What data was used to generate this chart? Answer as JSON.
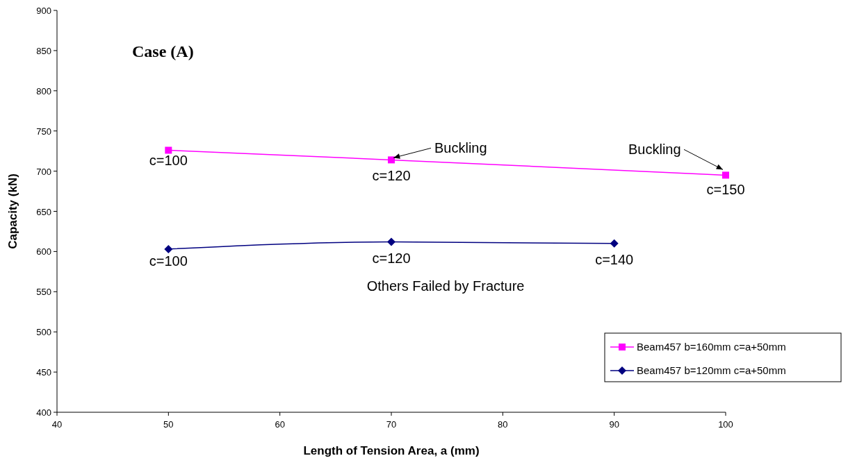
{
  "chart_data": {
    "type": "line",
    "title": "Case (A)",
    "xlabel": "Length of Tension Area, a (mm)",
    "ylabel": "Capacity (kN)",
    "xlim": [
      40,
      100
    ],
    "xticks": [
      40,
      50,
      60,
      70,
      80,
      90,
      100
    ],
    "ylim": [
      400,
      900
    ],
    "yticks": [
      400,
      450,
      500,
      550,
      600,
      650,
      700,
      750,
      800,
      850,
      900
    ],
    "grid": false,
    "legend": "right",
    "series": [
      {
        "name": "Beam457 b=160mm c=a+50mm",
        "color": "#ff00ff",
        "marker": "square",
        "x": [
          50,
          70,
          100
        ],
        "values": [
          726,
          714,
          695
        ]
      },
      {
        "name": "Beam457 b=120mm c=a+50mm",
        "color": "#000080",
        "marker": "diamond",
        "x": [
          50,
          70,
          90
        ],
        "values": [
          603,
          612,
          610
        ]
      }
    ],
    "annotations": [
      {
        "text": "c=100",
        "x": 50,
        "y": 726
      },
      {
        "text": "c=120",
        "x": 70,
        "y": 714
      },
      {
        "text": "c=150",
        "x": 100,
        "y": 695
      },
      {
        "text": "Buckling",
        "x": 70,
        "y": 714
      },
      {
        "text": "Buckling",
        "x": 100,
        "y": 695
      },
      {
        "text": "c=100",
        "x": 50,
        "y": 603
      },
      {
        "text": "c=120",
        "x": 70,
        "y": 612
      },
      {
        "text": "c=140",
        "x": 90,
        "y": 610
      },
      "Others Failed by Fracture"
    ]
  }
}
